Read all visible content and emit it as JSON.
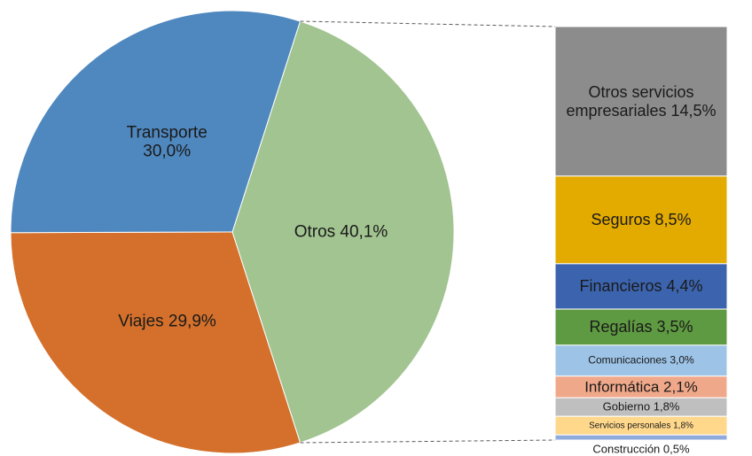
{
  "chart_data": [
    {
      "type": "pie",
      "categories": [
        "Otros",
        "Viajes",
        "Transporte"
      ],
      "values": [
        40.1,
        29.9,
        30.0
      ],
      "value_labels": [
        "40,1%",
        "29,9%",
        "30,0%"
      ],
      "colors": [
        "#a2c491",
        "#d4702b",
        "#4f88bf"
      ]
    },
    {
      "type": "bar",
      "stacked": true,
      "categories": [
        "Otros servicios empresariales",
        "Seguros",
        "Financieros",
        "Regalías",
        "Comunicaciones",
        "Informática",
        "Gobierno",
        "Servicios personales",
        "Construcción"
      ],
      "values": [
        14.5,
        8.5,
        4.4,
        3.5,
        3.0,
        2.1,
        1.8,
        1.8,
        0.5
      ],
      "value_labels": [
        "14,5%",
        "8,5%",
        "4,4%",
        "3,5%",
        "3,0%",
        "2,1%",
        "1,8%",
        "1,8%",
        "0,5%"
      ],
      "colors": [
        "#8c8c8c",
        "#e3aa00",
        "#3c64ae",
        "#5e9a41",
        "#9dc3e6",
        "#f0a88a",
        "#bfbfbf",
        "#ffd88c",
        "#8faadc"
      ]
    }
  ]
}
